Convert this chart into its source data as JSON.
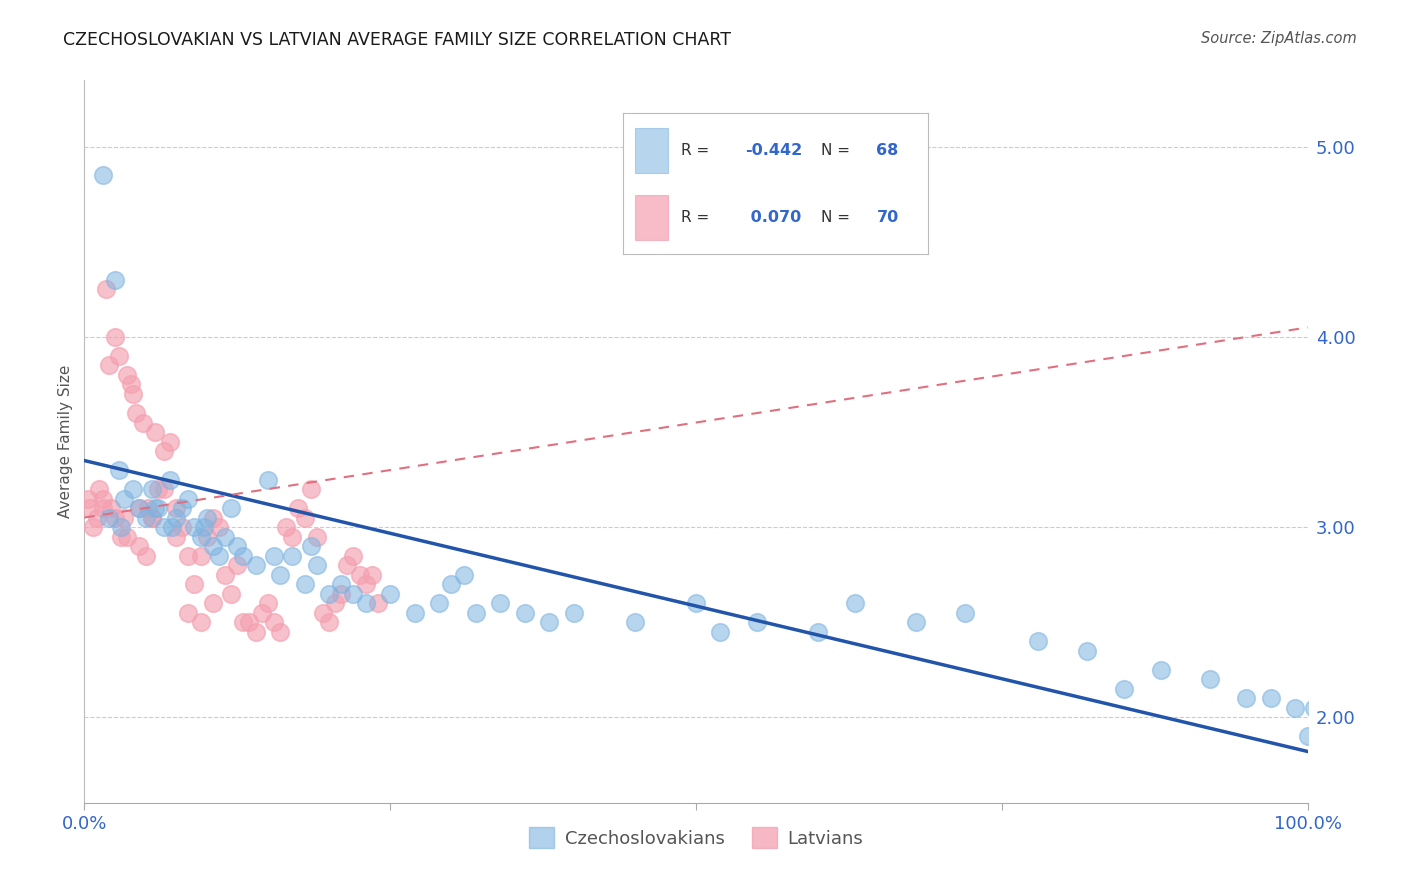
{
  "title": "CZECHOSLOVAKIAN VS LATVIAN AVERAGE FAMILY SIZE CORRELATION CHART",
  "source": "Source: ZipAtlas.com",
  "ylabel": "Average Family Size",
  "yticks_right": [
    2.0,
    3.0,
    4.0,
    5.0
  ],
  "xlim": [
    0,
    100
  ],
  "ylim": [
    1.55,
    5.35
  ],
  "legend_label1": "Czechoslovakians",
  "legend_label2": "Latvians",
  "R1": "-0.442",
  "N1": "68",
  "R2": "0.070",
  "N2": "70",
  "blue_color": "#7EB3E0",
  "pink_color": "#F4A0B0",
  "trend_blue": "#2255AA",
  "trend_pink": "#E07080",
  "title_color": "#1a1a1a",
  "axis_label_color": "#3366CC",
  "background_color": "#FFFFFF",
  "blue_trend_x0": 0,
  "blue_trend_y0": 3.35,
  "blue_trend_x1": 100,
  "blue_trend_y1": 1.82,
  "pink_trend_x0": 0,
  "pink_trend_y0": 3.05,
  "pink_trend_x1": 100,
  "pink_trend_y1": 4.05,
  "blue_x": [
    1.5,
    2.5,
    2.8,
    3.2,
    4.0,
    4.5,
    5.0,
    5.5,
    6.0,
    6.5,
    7.0,
    7.5,
    8.0,
    8.5,
    9.0,
    9.5,
    10.0,
    10.5,
    11.0,
    11.5,
    12.0,
    13.0,
    14.0,
    15.0,
    16.0,
    17.0,
    18.0,
    19.0,
    20.0,
    21.0,
    22.0,
    23.0,
    25.0,
    27.0,
    29.0,
    30.0,
    31.0,
    32.0,
    34.0,
    36.0,
    38.0,
    40.0,
    45.0,
    50.0,
    52.0,
    55.0,
    60.0,
    63.0,
    68.0,
    72.0,
    78.0,
    82.0,
    85.0,
    88.0,
    92.0,
    95.0,
    97.0,
    99.0,
    100.0,
    100.5,
    2.0,
    3.0,
    5.8,
    7.2,
    9.8,
    12.5,
    15.5,
    18.5
  ],
  "blue_y": [
    4.85,
    4.3,
    3.3,
    3.15,
    3.2,
    3.1,
    3.05,
    3.2,
    3.1,
    3.0,
    3.25,
    3.05,
    3.1,
    3.15,
    3.0,
    2.95,
    3.05,
    2.9,
    2.85,
    2.95,
    3.1,
    2.85,
    2.8,
    3.25,
    2.75,
    2.85,
    2.7,
    2.8,
    2.65,
    2.7,
    2.65,
    2.6,
    2.65,
    2.55,
    2.6,
    2.7,
    2.75,
    2.55,
    2.6,
    2.55,
    2.5,
    2.55,
    2.5,
    2.6,
    2.45,
    2.5,
    2.45,
    2.6,
    2.5,
    2.55,
    2.4,
    2.35,
    2.15,
    2.25,
    2.2,
    2.1,
    2.1,
    2.05,
    1.9,
    2.05,
    3.05,
    3.0,
    3.1,
    3.0,
    3.0,
    2.9,
    2.85,
    2.9
  ],
  "pink_x": [
    0.3,
    0.5,
    0.7,
    1.0,
    1.2,
    1.5,
    1.8,
    2.0,
    2.2,
    2.5,
    2.8,
    3.0,
    3.2,
    3.5,
    3.8,
    4.0,
    4.2,
    4.5,
    4.8,
    5.0,
    5.2,
    5.5,
    5.8,
    6.0,
    6.5,
    7.0,
    7.5,
    8.0,
    8.5,
    9.0,
    9.5,
    10.0,
    10.5,
    11.0,
    11.5,
    12.0,
    12.5,
    13.0,
    13.5,
    14.0,
    14.5,
    15.0,
    15.5,
    16.0,
    16.5,
    17.0,
    17.5,
    18.0,
    18.5,
    19.0,
    19.5,
    20.0,
    20.5,
    21.0,
    21.5,
    22.0,
    22.5,
    23.0,
    23.5,
    24.0,
    1.5,
    2.5,
    3.5,
    4.5,
    5.5,
    6.5,
    7.5,
    8.5,
    9.5,
    10.5
  ],
  "pink_y": [
    3.15,
    3.1,
    3.0,
    3.05,
    3.2,
    3.1,
    4.25,
    3.85,
    3.1,
    4.0,
    3.9,
    2.95,
    3.05,
    3.8,
    3.75,
    3.7,
    3.6,
    2.9,
    3.55,
    2.85,
    3.1,
    3.05,
    3.5,
    3.2,
    3.4,
    3.45,
    3.1,
    3.0,
    2.85,
    2.7,
    2.85,
    2.95,
    3.05,
    3.0,
    2.75,
    2.65,
    2.8,
    2.5,
    2.5,
    2.45,
    2.55,
    2.6,
    2.5,
    2.45,
    3.0,
    2.95,
    3.1,
    3.05,
    3.2,
    2.95,
    2.55,
    2.5,
    2.6,
    2.65,
    2.8,
    2.85,
    2.75,
    2.7,
    2.75,
    2.6,
    3.15,
    3.05,
    2.95,
    3.1,
    3.05,
    3.2,
    2.95,
    2.55,
    2.5,
    2.6
  ]
}
